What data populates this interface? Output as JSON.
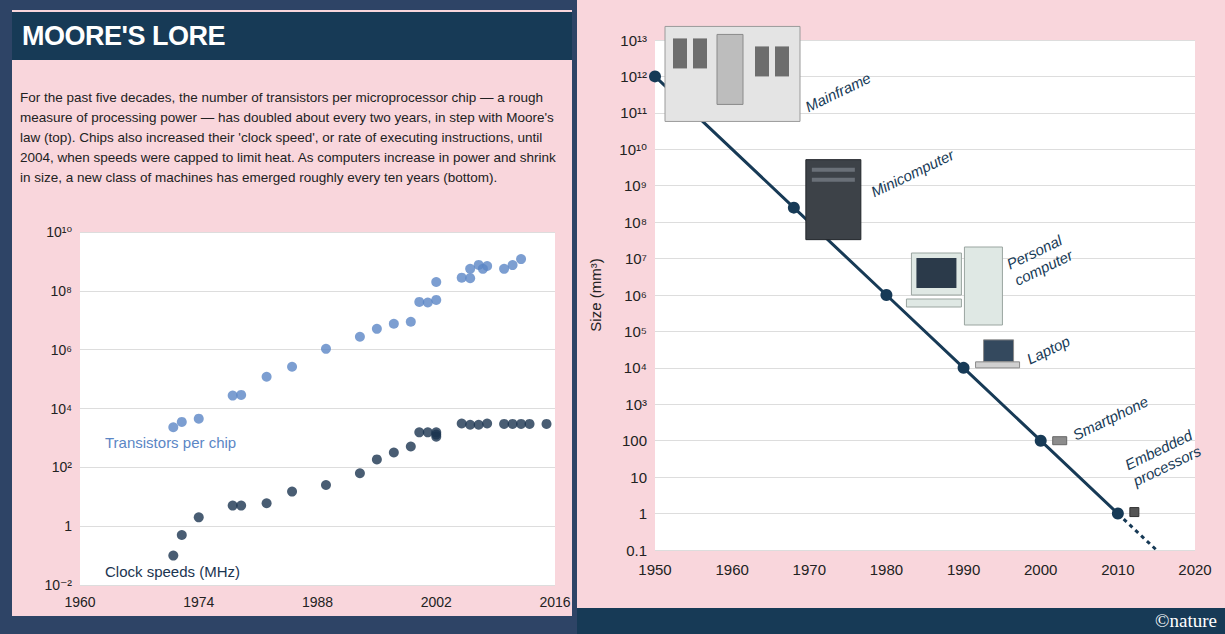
{
  "title": "MOORE'S LORE",
  "description": "For the past five decades, the number of transistors per microprocessor chip — a rough measure of processing power — has doubled about every two years, in step with Moore's law (top). Chips also increased their 'clock speed', or rate of executing instructions, until 2004, when speeds were capped to limit heat. As computers increase in power and shrink in size, a new class of machines has emerged roughly every ten years (bottom).",
  "credit": "©nature",
  "chart_data": [
    {
      "type": "scatter",
      "log": "y",
      "grid": true,
      "xlim": [
        1960,
        2016
      ],
      "xticks": [
        1960,
        1974,
        1988,
        2002,
        2016
      ],
      "ylim": [
        0.01,
        10000000000
      ],
      "yticks": [
        {
          "value": 0.01,
          "label": "10⁻²"
        },
        1,
        {
          "value": 100,
          "label": "10²"
        },
        {
          "value": 10000,
          "label": "10⁴"
        },
        {
          "value": 1000000,
          "label": "10⁶"
        },
        {
          "value": 100000000,
          "label": "10⁸"
        },
        {
          "value": 10000000000,
          "label": "10¹⁰"
        }
      ],
      "series": [
        {
          "name": "Transistors per chip",
          "color": "#5b86c5",
          "marker": "circle",
          "x": [
            1971,
            1972,
            1974,
            1978,
            1979,
            1982,
            1985,
            1989,
            1993,
            1995,
            1997,
            1999,
            2000,
            2001,
            2002,
            2002,
            2005,
            2006,
            2006,
            2007,
            2007.5,
            2008,
            2010,
            2011,
            2012
          ],
          "values": [
            2300,
            3500,
            4500,
            27500,
            29000,
            120000,
            263000,
            1070000,
            2750000,
            5100000,
            7600000,
            8900000,
            42000000,
            40000000,
            49000000,
            200000000,
            280000000,
            270000000,
            560000000,
            760000000,
            560000000,
            700000000,
            560000000,
            750000000,
            1200000000
          ]
        },
        {
          "name": "Clock speeds (MHz)",
          "color": "#1b3550",
          "marker": "circle",
          "x": [
            1971,
            1972,
            1974,
            1978,
            1979,
            1982,
            1985,
            1989,
            1993,
            1995,
            1997,
            1999,
            2000,
            2001,
            2002,
            2002,
            2002,
            2005,
            2006,
            2007,
            2008,
            2010,
            2011,
            2012,
            2013,
            2015
          ],
          "values": [
            0.1,
            0.5,
            2,
            5,
            5,
            6,
            15,
            25,
            63,
            186,
            320,
            510,
            1550,
            1550,
            1550,
            1300,
            1100,
            3100,
            2800,
            2800,
            3100,
            3000,
            3000,
            3000,
            3000,
            3000
          ]
        }
      ]
    },
    {
      "type": "line",
      "log": "y",
      "grid": true,
      "ylabel": "Size (mm³)",
      "xlim": [
        1950,
        2020
      ],
      "xticks": [
        1950,
        1960,
        1970,
        1980,
        1990,
        2000,
        2010,
        2020
      ],
      "ylim": [
        0.1,
        10000000000000
      ],
      "yticks": [
        0.1,
        1,
        10,
        100,
        {
          "value": 1000,
          "label": "10³"
        },
        {
          "value": 10000,
          "label": "10⁴"
        },
        {
          "value": 100000,
          "label": "10⁵"
        },
        {
          "value": 1000000,
          "label": "10⁶"
        },
        {
          "value": 10000000,
          "label": "10⁷"
        },
        {
          "value": 100000000,
          "label": "10⁸"
        },
        {
          "value": 1000000000,
          "label": "10⁹"
        },
        {
          "value": 10000000000,
          "label": "10¹⁰"
        },
        {
          "value": 100000000000,
          "label": "10¹¹"
        },
        {
          "value": 1000000000000,
          "label": "10¹²"
        },
        {
          "value": 10000000000000,
          "label": "10¹³"
        }
      ],
      "series": [
        {
          "color": "#173a56",
          "marker": "circle",
          "line_style": "solid",
          "x": [
            1950,
            1968,
            1980,
            1990,
            2000,
            2010
          ],
          "values": [
            1000000000000,
            250000000,
            1000000,
            10000,
            100,
            1
          ],
          "labels": [
            "Mainframe",
            "Minicomputer",
            "Personal computer",
            "Laptop",
            "Smartphone",
            "Embedded processors"
          ]
        },
        {
          "color": "#173a56",
          "marker": "none",
          "line_style": "dotted",
          "x": [
            2010,
            2015
          ],
          "values": [
            1,
            0.1
          ]
        }
      ]
    }
  ]
}
